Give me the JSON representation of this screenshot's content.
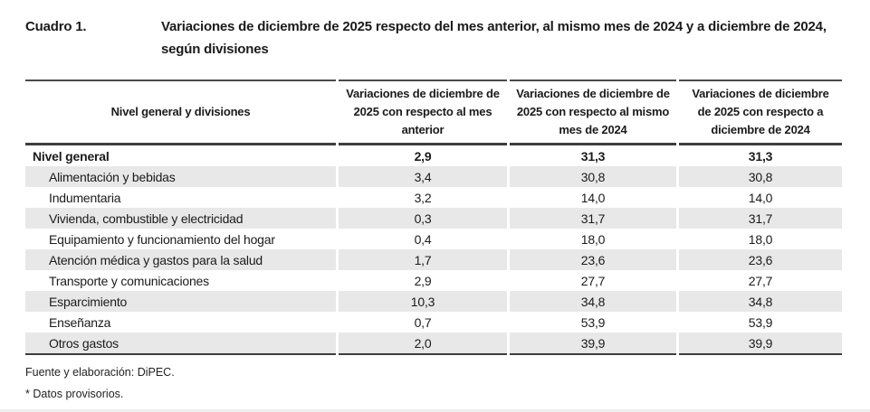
{
  "title": {
    "label": "Cuadro 1.",
    "text": "Variaciones de diciembre de 2025 respecto del mes anterior, al mismo mes de 2024 y a diciembre de 2024, según divisiones"
  },
  "table": {
    "columns": [
      "Nivel general y divisiones",
      "Variaciones de diciembre de 2025 con respecto al mes anterior",
      "Variaciones de diciembre de 2025 con respecto al mismo mes de 2024",
      "Variaciones de diciembre de 2025 con respecto a diciembre de 2024"
    ],
    "rows": [
      {
        "label": "Nivel general",
        "level": "general",
        "values": [
          "2,9",
          "31,3",
          "31,3"
        ]
      },
      {
        "label": "Alimentación y bebidas",
        "level": "division",
        "values": [
          "3,4",
          "30,8",
          "30,8"
        ]
      },
      {
        "label": "Indumentaria",
        "level": "division",
        "values": [
          "3,2",
          "14,0",
          "14,0"
        ]
      },
      {
        "label": "Vivienda, combustible y electricidad",
        "level": "division",
        "values": [
          "0,3",
          "31,7",
          "31,7"
        ]
      },
      {
        "label": "Equipamiento y funcionamiento del hogar",
        "level": "division",
        "values": [
          "0,4",
          "18,0",
          "18,0"
        ]
      },
      {
        "label": "Atención médica y gastos para la salud",
        "level": "division",
        "values": [
          "1,7",
          "23,6",
          "23,6"
        ]
      },
      {
        "label": "Transporte y comunicaciones",
        "level": "division",
        "values": [
          "2,9",
          "27,7",
          "27,7"
        ]
      },
      {
        "label": "Esparcimiento",
        "level": "division",
        "values": [
          "10,3",
          "34,8",
          "34,8"
        ]
      },
      {
        "label": "Enseñanza",
        "level": "division",
        "values": [
          "0,7",
          "53,9",
          "53,9"
        ]
      },
      {
        "label": "Otros gastos",
        "level": "division",
        "values": [
          "2,0",
          "39,9",
          "39,9"
        ]
      }
    ]
  },
  "footer": {
    "source": "Fuente y elaboración: DiPEC.",
    "note": "* Datos provisorios."
  },
  "colors": {
    "row_shade": "#e8e8e8",
    "border_dark": "#3d3d3d",
    "text": "#1b1b1b"
  },
  "chart_data": {
    "type": "table",
    "title": "Cuadro 1. Variaciones de diciembre de 2025 respecto del mes anterior, al mismo mes de 2024 y a diciembre de 2024, según divisiones",
    "categories": [
      "Nivel general",
      "Alimentación y bebidas",
      "Indumentaria",
      "Vivienda, combustible y electricidad",
      "Equipamiento y funcionamiento del hogar",
      "Atención médica y gastos para la salud",
      "Transporte y comunicaciones",
      "Esparcimiento",
      "Enseñanza",
      "Otros gastos"
    ],
    "series": [
      {
        "name": "Variaciones de diciembre de 2025 con respecto al mes anterior",
        "values": [
          2.9,
          3.4,
          3.2,
          0.3,
          0.4,
          1.7,
          2.9,
          10.3,
          0.7,
          2.0
        ]
      },
      {
        "name": "Variaciones de diciembre de 2025 con respecto al mismo mes de 2024",
        "values": [
          31.3,
          30.8,
          14.0,
          31.7,
          18.0,
          23.6,
          27.7,
          34.8,
          53.9,
          39.9
        ]
      },
      {
        "name": "Variaciones de diciembre de 2025 con respecto a diciembre de 2024",
        "values": [
          31.3,
          30.8,
          14.0,
          31.7,
          18.0,
          23.6,
          27.7,
          34.8,
          53.9,
          39.9
        ]
      }
    ]
  }
}
